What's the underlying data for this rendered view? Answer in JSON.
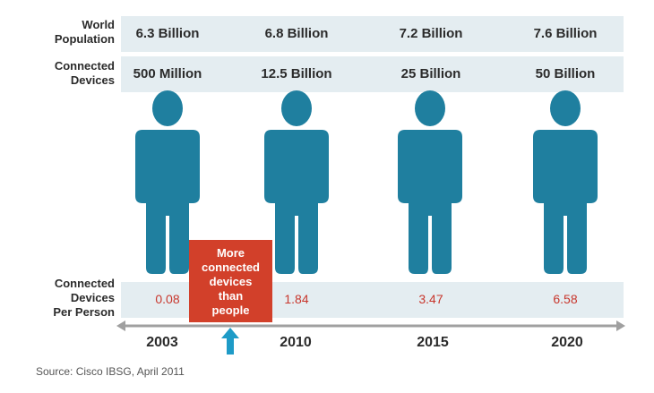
{
  "row_labels": {
    "population": [
      "World",
      "Population"
    ],
    "devices": [
      "Connected",
      "Devices"
    ],
    "per_person": [
      "Connected",
      "Devices",
      "Per Person"
    ]
  },
  "columns": [
    {
      "year": "2003",
      "population": "6.3 Billion",
      "devices": "500 Million",
      "per_person": "0.08"
    },
    {
      "year": "2010",
      "population": "6.8 Billion",
      "devices": "12.5 Billion",
      "per_person": "1.84"
    },
    {
      "year": "2015",
      "population": "7.2 Billion",
      "devices": "25 Billion",
      "per_person": "3.47"
    },
    {
      "year": "2020",
      "population": "7.6 Billion",
      "devices": "50 Billion",
      "per_person": "6.58"
    }
  ],
  "callout": [
    "More",
    "connected",
    "devices",
    "than",
    "people"
  ],
  "source": "Source: Cisco IBSG, April 2011",
  "colors": {
    "person": "#1f7f9f",
    "band": "#e4edf1",
    "callout": "#d2402a",
    "per_person_value": "#c8372d",
    "arrow": "#1e9bc7",
    "axis": "#a0a0a0"
  },
  "chart_data": {
    "type": "table",
    "categories": [
      "2003",
      "2010",
      "2015",
      "2020"
    ],
    "series": [
      {
        "name": "World Population",
        "values": [
          "6.3 Billion",
          "6.8 Billion",
          "7.2 Billion",
          "7.6 Billion"
        ]
      },
      {
        "name": "Connected Devices",
        "values": [
          "500 Million",
          "12.5 Billion",
          "25 Billion",
          "50 Billion"
        ]
      },
      {
        "name": "Connected Devices Per Person",
        "values": [
          0.08,
          1.84,
          3.47,
          6.58
        ]
      }
    ],
    "annotation": "More connected devices than people"
  }
}
